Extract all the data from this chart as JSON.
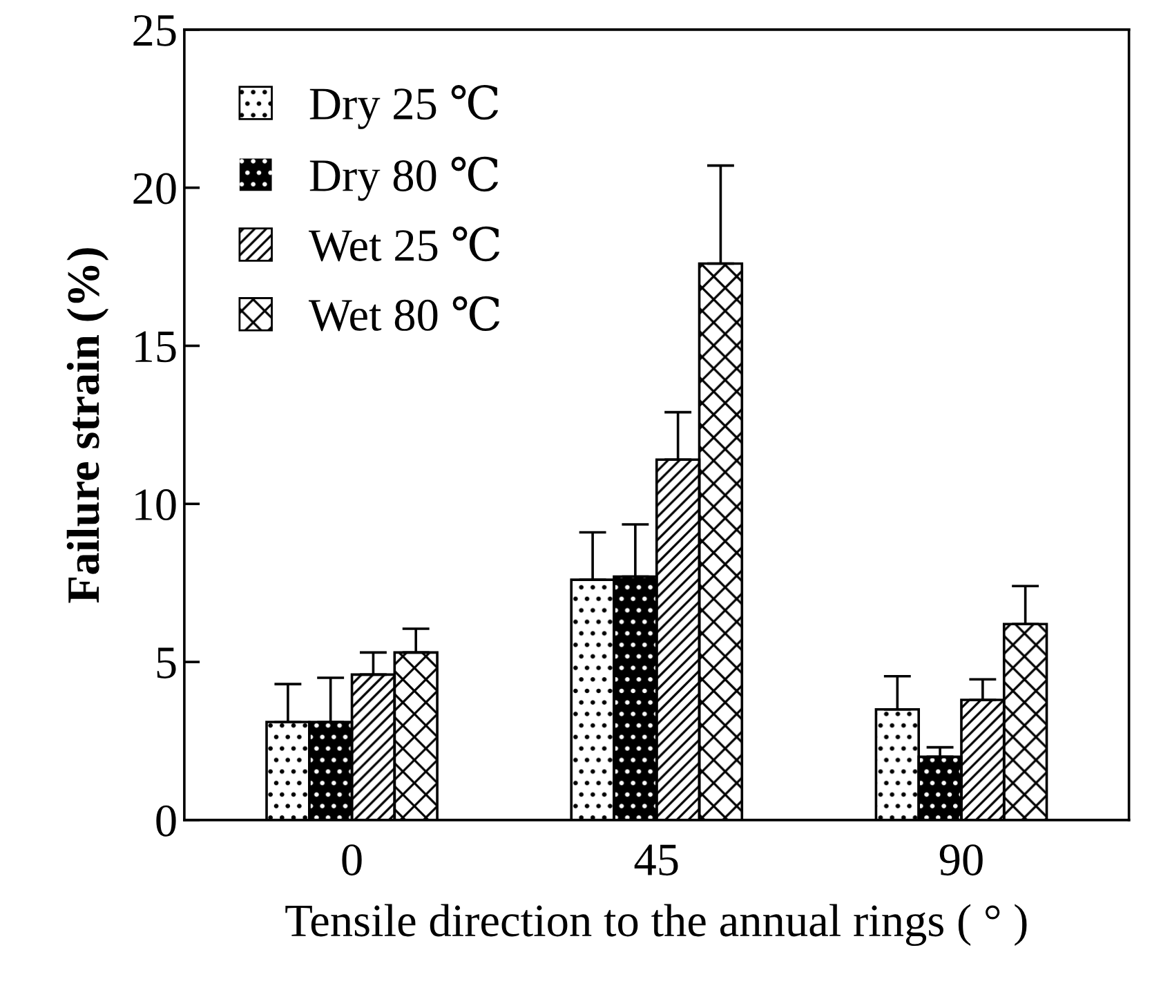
{
  "chart_data": {
    "type": "bar",
    "xlabel": "Tensile direction to the annual rings ( ° )",
    "ylabel": "Failure strain (%)",
    "categories": [
      "0",
      "45",
      "90"
    ],
    "series": [
      {
        "name": "Dry 25 ℃",
        "color": "#ffffff",
        "values": [
          3.1,
          7.6,
          3.5
        ],
        "errors": [
          1.2,
          1.5,
          1.05
        ]
      },
      {
        "name": "Dry 80 ℃",
        "color": "#000000",
        "values": [
          3.1,
          7.7,
          2.0
        ],
        "errors": [
          1.4,
          1.65,
          0.3
        ]
      },
      {
        "name": "Wet 25 ℃",
        "color": "#ffffff",
        "values": [
          4.6,
          11.4,
          3.8
        ],
        "errors": [
          0.7,
          1.5,
          0.65
        ]
      },
      {
        "name": "Wet 80 ℃",
        "color": "#ffffff",
        "values": [
          5.3,
          17.6,
          6.2
        ],
        "errors": [
          0.75,
          3.1,
          1.2
        ]
      }
    ],
    "ylim": [
      0,
      25
    ],
    "yticks": [
      0,
      5,
      10,
      15,
      20,
      25
    ],
    "grid": false,
    "legend": "top left"
  }
}
